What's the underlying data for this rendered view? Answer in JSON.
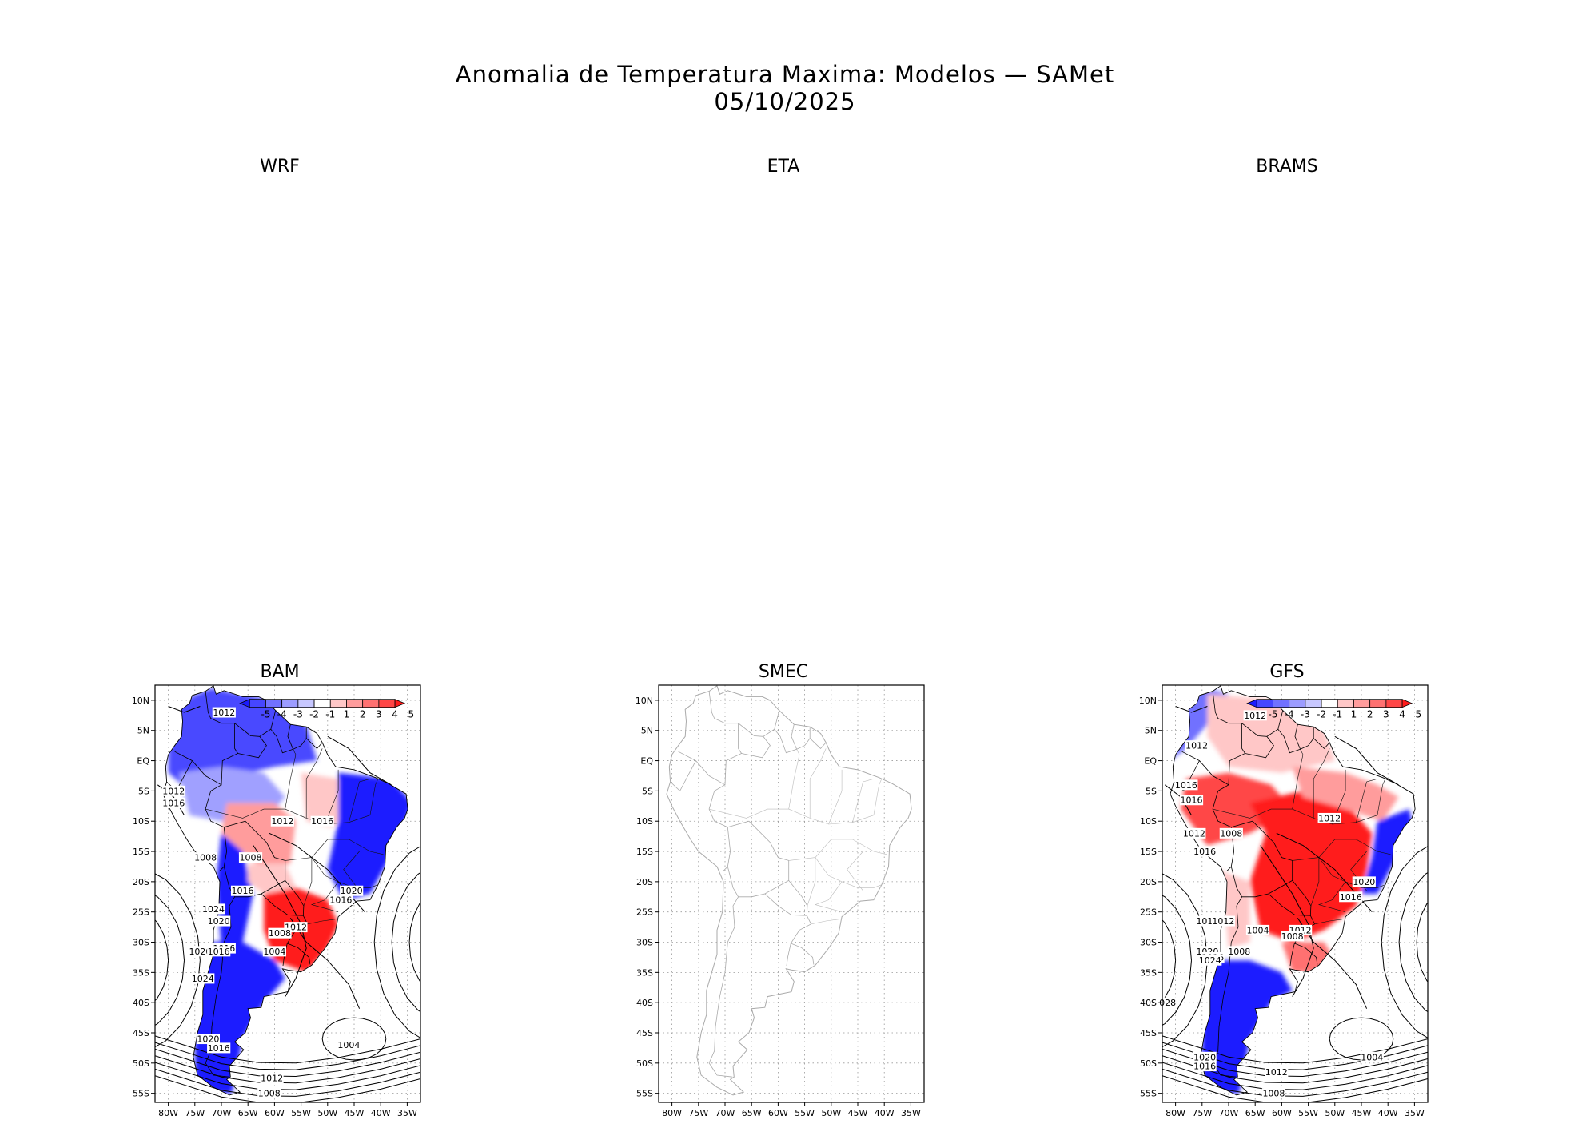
{
  "figure": {
    "title": "Anomalia de Temperatura Maxima: Modelos — SAMet",
    "date": "05/10/2025"
  },
  "panels": [
    {
      "name": "WRF",
      "has_data": false
    },
    {
      "name": "ETA",
      "has_data": false
    },
    {
      "name": "BRAMS",
      "has_data": false
    },
    {
      "name": "BAM",
      "has_data": true,
      "colorbar": true
    },
    {
      "name": "SMEC",
      "has_data": false,
      "colorbar": false
    },
    {
      "name": "GFS",
      "has_data": true,
      "colorbar": true
    }
  ],
  "chart_data": {
    "type": "heatmap",
    "lon_ticks": [
      "80W",
      "75W",
      "70W",
      "65W",
      "60W",
      "55W",
      "50W",
      "45W",
      "40W",
      "35W"
    ],
    "lon_values": [
      -80,
      -75,
      -70,
      -65,
      -60,
      -55,
      -50,
      -45,
      -40,
      -35
    ],
    "lat_ticks": [
      "10N",
      "5N",
      "EQ",
      "5S",
      "10S",
      "15S",
      "20S",
      "25S",
      "30S",
      "35S",
      "40S",
      "45S",
      "50S",
      "55S"
    ],
    "lat_values": [
      10,
      5,
      0,
      -5,
      -10,
      -15,
      -20,
      -25,
      -30,
      -35,
      -40,
      -45,
      -50,
      -55
    ],
    "xlim": [
      -82.5,
      -32.5
    ],
    "ylim": [
      -56.5,
      12.5
    ],
    "colorbar": {
      "labels": [
        "-5",
        "-4",
        "-3",
        "-2",
        "-1",
        "1",
        "2",
        "3",
        "4",
        "5"
      ],
      "colors": [
        "#1b1bff",
        "#4646ff",
        "#7171ff",
        "#9c9cff",
        "#c7c7ff",
        "#ffffff",
        "#ffc7c7",
        "#ff9c9c",
        "#ff7171",
        "#ff4646",
        "#ff1b1b"
      ]
    },
    "contours": {
      "BAM": [
        "1012",
        "1012",
        "1016",
        "1012",
        "1016",
        "1008",
        "1008",
        "1016",
        "1020",
        "1016",
        "1024",
        "1020",
        "1016",
        "1020",
        "1016",
        "1012",
        "1008",
        "1004",
        "1024",
        "1020",
        "1016",
        "1004",
        "1012",
        "1008"
      ],
      "GFS": [
        "1012",
        "1012",
        "1016",
        "1016",
        "1012",
        "1008",
        "1016",
        "1012",
        "1020",
        "1016",
        "1016",
        "1012",
        "1004",
        "1012",
        "1008",
        "1020",
        "1016",
        "1008",
        "1024",
        "028",
        "1020",
        "1016",
        "1004",
        "1012",
        "1008"
      ]
    }
  }
}
